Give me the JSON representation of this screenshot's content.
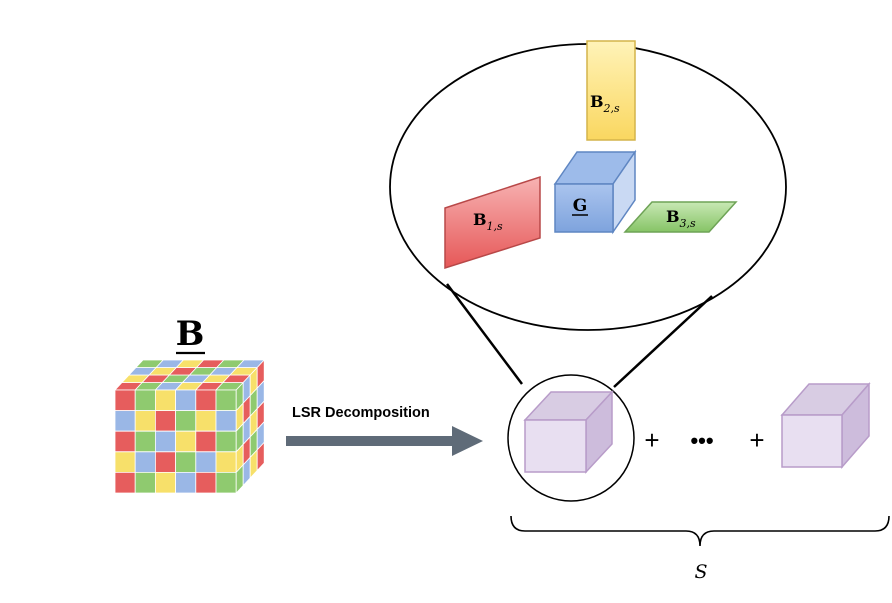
{
  "tensor": {
    "label": "B",
    "cell_colors": {
      "red": "#e65d5d",
      "green": "#8fca6f",
      "blue": "#9ab7e6",
      "yellow": "#f7e06a"
    }
  },
  "arrow": {
    "label": "LSR Decomposition",
    "color": "#5f6b78"
  },
  "zoom": {
    "factor_2": {
      "base": "B",
      "sub": "2,s",
      "fill": "#fddd6b",
      "stroke": "#c8a83a"
    },
    "core": {
      "label": "G",
      "fill": "#8fb0e3",
      "stroke": "#5f86c2"
    },
    "factor_1": {
      "base": "B",
      "sub": "1,s",
      "fill": "#eb6a6a",
      "stroke": "#b84848"
    },
    "factor_3": {
      "base": "B",
      "sub": "3,s",
      "fill": "#9bd17f",
      "stroke": "#6ea356"
    }
  },
  "terms": {
    "cube_fill": "#e8dff1",
    "cube_stroke": "#b89cc9",
    "plus_1": "+",
    "ellipsis": "•••",
    "plus_2": "+"
  },
  "brace_label": "S"
}
